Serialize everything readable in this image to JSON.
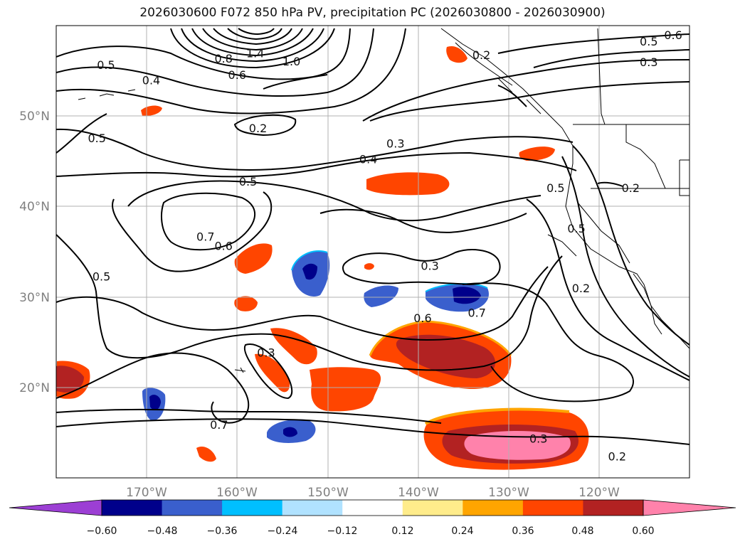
{
  "title": "2026030600 F072 850 hPa PV, precipitation PC (2026030800 - 2026030900)",
  "map": {
    "lon_range": [
      -180,
      -110
    ],
    "lat_range": [
      10,
      60
    ],
    "lon_ticks": [
      {
        "lon": -170,
        "label": "170°W"
      },
      {
        "lon": -160,
        "label": "160°W"
      },
      {
        "lon": -150,
        "label": "150°W"
      },
      {
        "lon": -140,
        "label": "140°W"
      },
      {
        "lon": -130,
        "label": "130°W"
      },
      {
        "lon": -120,
        "label": "120°W"
      }
    ],
    "lat_ticks": [
      {
        "lat": 20,
        "label": "20°N"
      },
      {
        "lat": 30,
        "label": "30°N"
      },
      {
        "lat": 40,
        "label": "40°N"
      },
      {
        "lat": 50,
        "label": "50°N"
      }
    ],
    "gridlines": true,
    "contour_labels": [
      {
        "text": "1.4",
        "lon": -158.0,
        "lat": 56.9
      },
      {
        "text": "0.8",
        "lon": -161.5,
        "lat": 56.3
      },
      {
        "text": "1.0",
        "lon": -154.0,
        "lat": 56.0
      },
      {
        "text": "0.5",
        "lon": -174.5,
        "lat": 55.6
      },
      {
        "text": "0.6",
        "lon": -160.0,
        "lat": 54.5
      },
      {
        "text": "0.4",
        "lon": -169.5,
        "lat": 53.9
      },
      {
        "text": "0.2",
        "lon": -157.7,
        "lat": 48.6
      },
      {
        "text": "0.5",
        "lon": -175.5,
        "lat": 47.5
      },
      {
        "text": "0.3",
        "lon": -142.5,
        "lat": 46.9
      },
      {
        "text": "0.4",
        "lon": -145.5,
        "lat": 45.2
      },
      {
        "text": "0.5",
        "lon": -158.8,
        "lat": 42.7
      },
      {
        "text": "0.7",
        "lon": -163.5,
        "lat": 36.6
      },
      {
        "text": "0.6",
        "lon": -161.5,
        "lat": 35.6
      },
      {
        "text": "0.5",
        "lon": -175.0,
        "lat": 32.2
      },
      {
        "text": "0.3",
        "lon": -138.7,
        "lat": 33.4
      },
      {
        "text": "0.7",
        "lon": -133.5,
        "lat": 28.2
      },
      {
        "text": "0.6",
        "lon": -139.5,
        "lat": 27.6
      },
      {
        "text": "0.3",
        "lon": -156.8,
        "lat": 23.8
      },
      {
        "text": "0.7",
        "lon": -162.0,
        "lat": 15.8
      },
      {
        "text": "0.3",
        "lon": -126.7,
        "lat": 14.3
      },
      {
        "text": "0.2",
        "lon": -118.0,
        "lat": 12.3
      },
      {
        "text": "0.2",
        "lon": -133.0,
        "lat": 56.7
      },
      {
        "text": "0.6",
        "lon": -111.8,
        "lat": 58.9
      },
      {
        "text": "0.5",
        "lon": -114.5,
        "lat": 58.2
      },
      {
        "text": "0.3",
        "lon": -114.5,
        "lat": 55.9
      },
      {
        "text": "0.2",
        "lon": -116.5,
        "lat": 42.0
      },
      {
        "text": "0.5",
        "lon": -124.8,
        "lat": 42.0
      },
      {
        "text": "0.5",
        "lon": -122.5,
        "lat": 37.5
      },
      {
        "text": "0.2",
        "lon": -122.0,
        "lat": 30.9
      }
    ]
  },
  "colorbar": {
    "colors": [
      "#9c3fd4",
      "#00008b",
      "#3a5fcd",
      "#00bfff",
      "#b0e2ff",
      "#ffffff",
      "#ffec8b",
      "#ffa500",
      "#ff4500",
      "#b22222",
      "#ff82ab"
    ],
    "tick_labels": [
      "−0.60",
      "−0.48",
      "−0.36",
      "−0.24",
      "−0.12",
      "0.12",
      "0.24",
      "0.36",
      "0.48",
      "0.60"
    ]
  }
}
